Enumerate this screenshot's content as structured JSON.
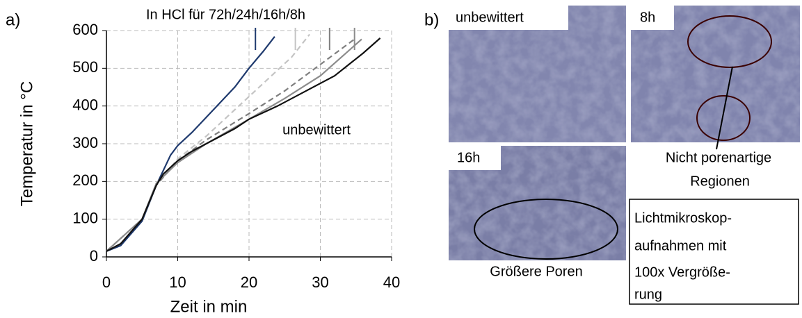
{
  "chart_data": {
    "type": "line",
    "panel_a": "a)",
    "panel_b": "b)",
    "xlabel": "Zeit in min",
    "ylabel": "Temperatur in °C",
    "xlim": [
      0,
      40
    ],
    "xticks": [
      0,
      10,
      20,
      30,
      40
    ],
    "ylim": [
      0,
      600
    ],
    "yticks": [
      0,
      100,
      200,
      300,
      400,
      500,
      600
    ],
    "grid": true,
    "annotation": "In HCl für 72h/24h/16h/8h",
    "curve_label": "unbewittert",
    "series": [
      {
        "color": "#1f3a6e",
        "dash": false,
        "x": [
          0,
          2,
          5,
          7,
          8,
          9,
          10,
          12,
          15,
          18,
          20,
          22,
          23.6
        ],
        "values": [
          15,
          30,
          95,
          190,
          230,
          270,
          295,
          330,
          390,
          450,
          500,
          545,
          584
        ],
        "marker_x": 20.9
      },
      {
        "color": "#c4c4c4",
        "dash": true,
        "x": [
          0,
          5,
          7,
          10,
          14,
          18,
          22,
          26,
          28.5
        ],
        "values": [
          15,
          100,
          190,
          260,
          320,
          390,
          460,
          530,
          590
        ],
        "marker_x": 26.5
      },
      {
        "color": "#7f7f7f",
        "dash": true,
        "x": [
          0,
          5,
          7,
          10,
          14,
          20,
          25,
          30,
          35
        ],
        "values": [
          15,
          100,
          190,
          255,
          310,
          380,
          440,
          510,
          580
        ],
        "marker_x": 31.3
      },
      {
        "color": "#8c8c8c",
        "dash": false,
        "x": [
          0,
          5,
          7,
          10,
          14,
          20,
          25,
          30,
          35.8
        ],
        "values": [
          15,
          100,
          195,
          250,
          300,
          365,
          420,
          480,
          577
        ],
        "marker_x": 34.8
      },
      {
        "color": "#111111",
        "dash": false,
        "x": [
          0,
          2,
          5,
          7,
          8,
          10,
          12,
          14,
          18,
          20,
          24,
          28,
          32,
          36,
          38.4
        ],
        "values": [
          15,
          35,
          100,
          190,
          220,
          255,
          280,
          300,
          340,
          365,
          400,
          440,
          480,
          540,
          580
        ]
      }
    ]
  },
  "images": {
    "unbewittert": "unbewittert",
    "h8": "8h",
    "h16": "16h",
    "callout_8h": [
      "Nicht porenartige",
      "Regionen"
    ],
    "callout_16h": "Größere Poren",
    "note": [
      "Lichtmikroskop-",
      "aufnahmen mit",
      "100x Vergröße-",
      "rung"
    ]
  }
}
